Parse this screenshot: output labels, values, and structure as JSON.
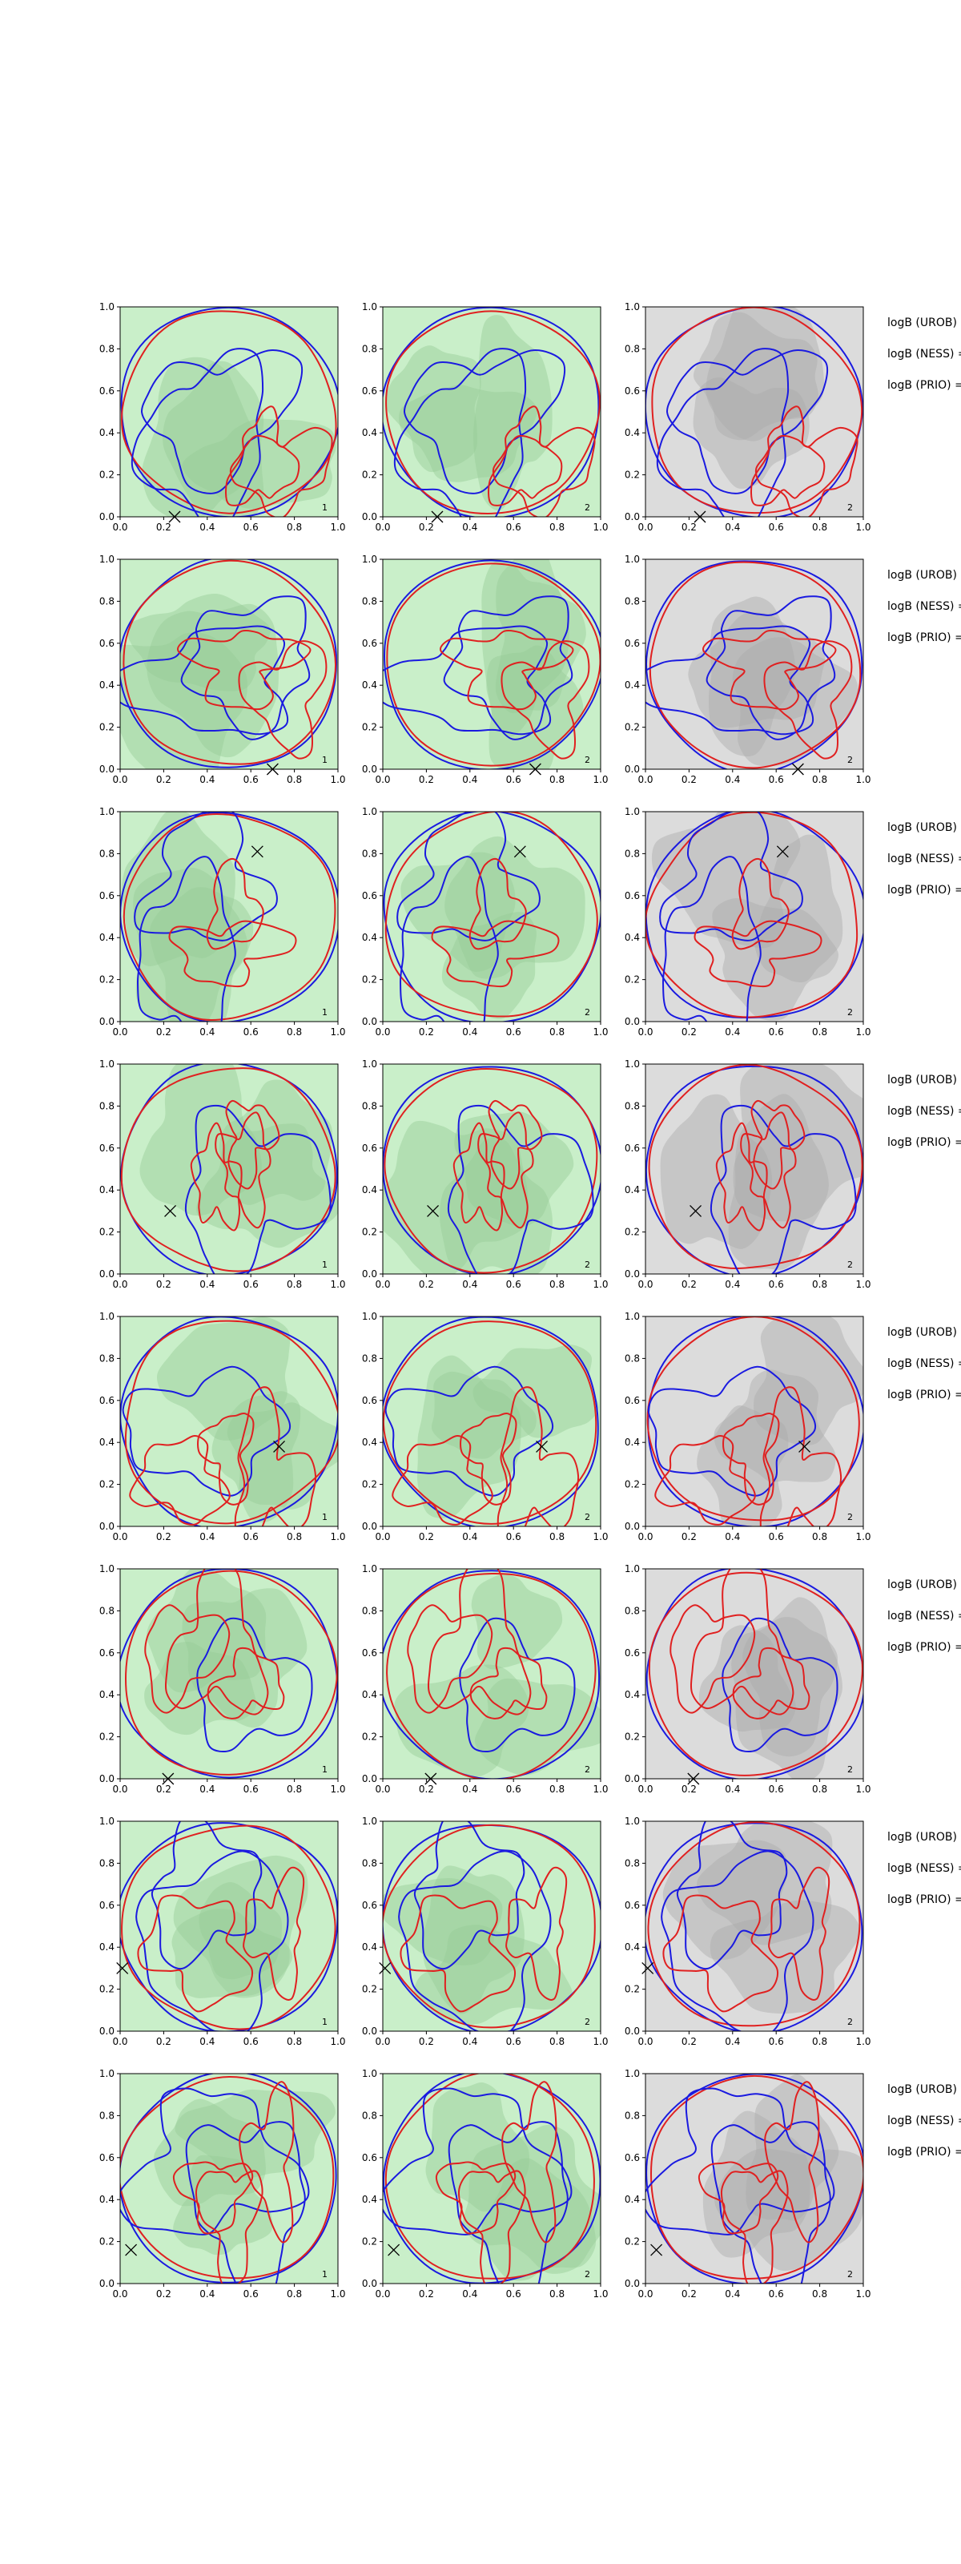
{
  "figure": {
    "rows": 8,
    "columns": 3,
    "side_text": [
      "logB (UROB) =",
      "logB (NESS) =",
      "logB (PRIO) ="
    ]
  },
  "chart_data": {
    "type": "grid of contour plots",
    "panel_count": 24,
    "axes": {
      "x": {
        "range": [
          0.0,
          1.0
        ],
        "ticks": [
          0.0,
          0.2,
          0.4,
          0.6,
          0.8,
          1.0
        ],
        "tick_labels": [
          "0.0",
          "0.2",
          "0.4",
          "0.6",
          "0.8",
          "1.0"
        ]
      },
      "y": {
        "range": [
          0.0,
          1.0
        ],
        "ticks": [
          0.0,
          0.2,
          0.4,
          0.6,
          0.8,
          1.0
        ],
        "tick_labels": [
          "0.0",
          "0.2",
          "0.4",
          "0.6",
          "0.8",
          "1.0"
        ]
      }
    },
    "column_backgrounds": [
      "#c9efc9",
      "#c9efc9",
      "#dcdcdc"
    ],
    "contour_colors": {
      "red": "#e02020",
      "blue": "#1a1ae0"
    },
    "panel_corner_labels": [
      [
        "1",
        "2",
        "2"
      ],
      [
        "1",
        "2",
        "2"
      ],
      [
        "1",
        "2",
        "2"
      ],
      [
        "1",
        "2",
        "2"
      ],
      [
        "1",
        "2",
        "2"
      ],
      [
        "1",
        "2",
        "2"
      ],
      [
        "1",
        "2",
        "2"
      ],
      [
        "1",
        "2",
        "2"
      ]
    ],
    "markers": [
      {
        "row": 1,
        "x": 0.25,
        "y": 0.0
      },
      {
        "row": 2,
        "x": 0.7,
        "y": 0.0
      },
      {
        "row": 3,
        "x": 0.63,
        "y": 0.81
      },
      {
        "row": 4,
        "x": 0.23,
        "y": 0.3
      },
      {
        "row": 5,
        "x": 0.73,
        "y": 0.38
      },
      {
        "row": 6,
        "x": 0.22,
        "y": 0.0
      },
      {
        "row": 7,
        "x": 0.01,
        "y": 0.3
      },
      {
        "row": 8,
        "x": 0.05,
        "y": 0.16
      }
    ],
    "marker_symbol": "×"
  }
}
